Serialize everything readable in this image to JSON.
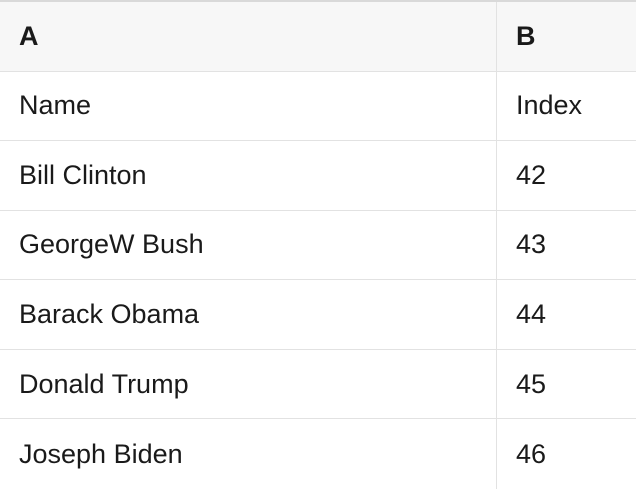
{
  "table": {
    "columns": [
      {
        "id": "A",
        "label": "A"
      },
      {
        "id": "B",
        "label": "B"
      }
    ],
    "rows": [
      {
        "cells": [
          "Name",
          "Index"
        ]
      },
      {
        "cells": [
          "Bill Clinton",
          "42"
        ]
      },
      {
        "cells": [
          "GeorgeW Bush",
          "43"
        ]
      },
      {
        "cells": [
          "Barack Obama",
          "44"
        ]
      },
      {
        "cells": [
          "Donald Trump",
          "45"
        ]
      },
      {
        "cells": [
          "Joseph Biden",
          "46"
        ]
      }
    ]
  },
  "colors": {
    "header_bg": "#f7f7f7",
    "grid_line": "#e2e2e2",
    "top_border": "#d9d9d9",
    "text": "#1a1a1a",
    "cell_bg": "#ffffff"
  }
}
